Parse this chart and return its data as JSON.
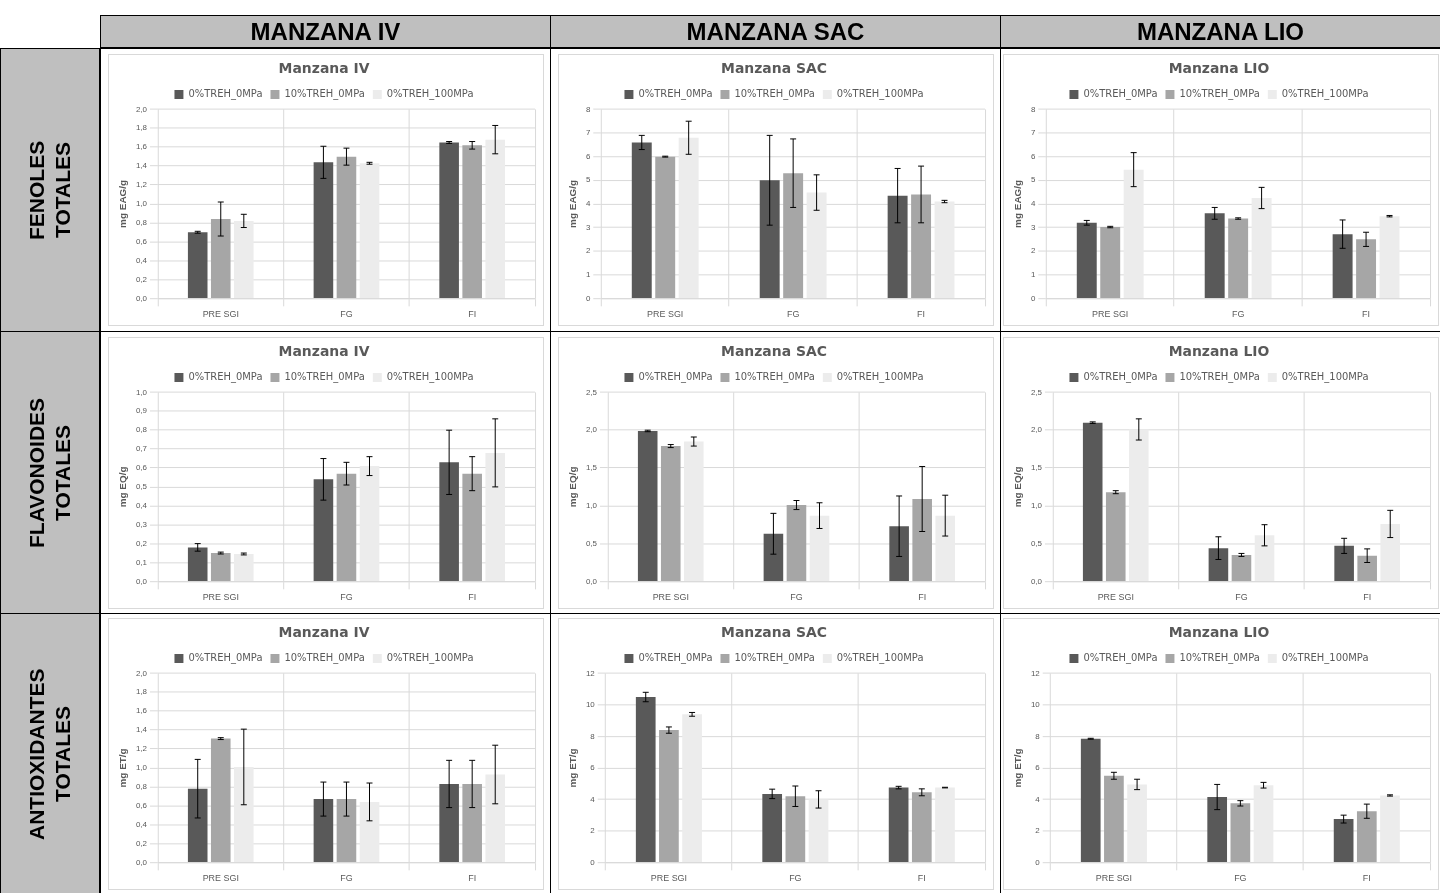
{
  "chart_data": [
    {
      "type": "bar",
      "title": "Manzana IV",
      "ylabel": "mg EAG/g",
      "categories": [
        "PRE SGI",
        "FG",
        "FI"
      ],
      "legend": "top",
      "grid": true,
      "ylim": [
        0,
        2
      ],
      "yticks": [
        {
          "value": 0,
          "label": "0,0"
        },
        {
          "value": 0.2,
          "label": "0,2"
        },
        {
          "value": 0.4,
          "label": "0,4"
        },
        {
          "value": 0.6,
          "label": "0,6"
        },
        {
          "value": 0.8,
          "label": "0,8"
        },
        {
          "value": 1,
          "label": "1,0"
        },
        {
          "value": 1.2,
          "label": "1,2"
        },
        {
          "value": 1.4,
          "label": "1,4"
        },
        {
          "value": 1.6,
          "label": "1,6"
        },
        {
          "value": 1.8,
          "label": "1,8"
        },
        {
          "value": 2,
          "label": "2,0"
        }
      ],
      "series": [
        {
          "name": "0%TREH_0MPa",
          "color": "#595959",
          "values": [
            0.7,
            1.44,
            1.65
          ],
          "errors": [
            0.01,
            0.17,
            0.01
          ]
        },
        {
          "name": "10%TREH_0MPa",
          "color": "#a6a6a6",
          "values": [
            0.84,
            1.5,
            1.62
          ],
          "errors": [
            0.18,
            0.09,
            0.04
          ]
        },
        {
          "name": "0%TREH_100MPa",
          "color": "#ececec",
          "values": [
            0.82,
            1.43,
            1.68
          ],
          "errors": [
            0.07,
            0.01,
            0.15
          ]
        }
      ]
    },
    {
      "type": "bar",
      "title": "Manzana SAC",
      "ylabel": "mg EAG/g",
      "categories": [
        "PRE SGI",
        "FG",
        "FI"
      ],
      "legend": "top",
      "grid": true,
      "ylim": [
        0,
        8
      ],
      "yticks": [
        0,
        1,
        2,
        3,
        4,
        5,
        6,
        7,
        8
      ],
      "series": [
        {
          "name": "0%TREH_0MPa",
          "color": "#595959",
          "values": [
            6.6,
            5.0,
            4.35
          ],
          "errors": [
            0.3,
            1.9,
            1.15
          ]
        },
        {
          "name": "10%TREH_0MPa",
          "color": "#a6a6a6",
          "values": [
            6.0,
            5.3,
            4.4
          ],
          "errors": [
            0.02,
            1.45,
            1.2
          ]
        },
        {
          "name": "0%TREH_100MPa",
          "color": "#ececec",
          "values": [
            6.8,
            4.48,
            4.1
          ],
          "errors": [
            0.7,
            0.75,
            0.05
          ]
        }
      ]
    },
    {
      "type": "bar",
      "title": "Manzana LIO",
      "ylabel": "mg EAG/g",
      "categories": [
        "PRE SGI",
        "FG",
        "FI"
      ],
      "legend": "top",
      "grid": true,
      "ylim": [
        0,
        8
      ],
      "yticks": [
        0,
        1,
        2,
        3,
        4,
        5,
        6,
        7,
        8
      ],
      "series": [
        {
          "name": "0%TREH_0MPa",
          "color": "#595959",
          "values": [
            3.2,
            3.6,
            2.72
          ],
          "errors": [
            0.1,
            0.25,
            0.6
          ]
        },
        {
          "name": "10%TREH_0MPa",
          "color": "#a6a6a6",
          "values": [
            3.02,
            3.38,
            2.5
          ],
          "errors": [
            0.03,
            0.03,
            0.3
          ]
        },
        {
          "name": "0%TREH_100MPa",
          "color": "#ececec",
          "values": [
            5.45,
            4.25,
            3.48
          ],
          "errors": [
            0.72,
            0.45,
            0.03
          ]
        }
      ]
    },
    {
      "type": "bar",
      "title": "Manzana IV",
      "ylabel": "mg EQ/g",
      "categories": [
        "PRE SGI",
        "FG",
        "FI"
      ],
      "legend": "top",
      "grid": true,
      "ylim": [
        0,
        1
      ],
      "yticks": [
        {
          "value": 0,
          "label": "0,0"
        },
        {
          "value": 0.1,
          "label": "0,1"
        },
        {
          "value": 0.2,
          "label": "0,2"
        },
        {
          "value": 0.3,
          "label": "0,3"
        },
        {
          "value": 0.4,
          "label": "0,4"
        },
        {
          "value": 0.5,
          "label": "0,5"
        },
        {
          "value": 0.6,
          "label": "0,6"
        },
        {
          "value": 0.7,
          "label": "0,7"
        },
        {
          "value": 0.8,
          "label": "0,8"
        },
        {
          "value": 0.9,
          "label": "0,9"
        },
        {
          "value": 1,
          "label": "1,0"
        }
      ],
      "series": [
        {
          "name": "0%TREH_0MPa",
          "color": "#595959",
          "values": [
            0.18,
            0.54,
            0.63
          ],
          "errors": [
            0.02,
            0.11,
            0.17
          ]
        },
        {
          "name": "10%TREH_0MPa",
          "color": "#a6a6a6",
          "values": [
            0.15,
            0.57,
            0.57
          ],
          "errors": [
            0.005,
            0.06,
            0.09
          ]
        },
        {
          "name": "0%TREH_100MPa",
          "color": "#ececec",
          "values": [
            0.145,
            0.61,
            0.68
          ],
          "errors": [
            0.005,
            0.05,
            0.18
          ]
        }
      ]
    },
    {
      "type": "bar",
      "title": "Manzana SAC",
      "ylabel": "mg EQ/g",
      "categories": [
        "PRE SGI",
        "FG",
        "FI"
      ],
      "legend": "top",
      "grid": true,
      "ylim": [
        0,
        2.5
      ],
      "yticks": [
        {
          "value": 0,
          "label": "0,0"
        },
        {
          "value": 0.5,
          "label": "0,5"
        },
        {
          "value": 1,
          "label": "1,0"
        },
        {
          "value": 1.5,
          "label": "1,5"
        },
        {
          "value": 2,
          "label": "2,0"
        },
        {
          "value": 2.5,
          "label": "2,5"
        }
      ],
      "series": [
        {
          "name": "0%TREH_0MPa",
          "color": "#595959",
          "values": [
            1.99,
            0.63,
            0.73
          ],
          "errors": [
            0.01,
            0.27,
            0.4
          ]
        },
        {
          "name": "10%TREH_0MPa",
          "color": "#a6a6a6",
          "values": [
            1.79,
            1.01,
            1.09
          ],
          "errors": [
            0.02,
            0.06,
            0.43
          ]
        },
        {
          "name": "0%TREH_100MPa",
          "color": "#ececec",
          "values": [
            1.85,
            0.87,
            0.87
          ],
          "errors": [
            0.06,
            0.17,
            0.27
          ]
        }
      ]
    },
    {
      "type": "bar",
      "title": "Manzana LIO",
      "ylabel": "mg EQ/g",
      "categories": [
        "PRE SGI",
        "FG",
        "FI"
      ],
      "legend": "top",
      "grid": true,
      "ylim": [
        0,
        2.5
      ],
      "yticks": [
        {
          "value": 0,
          "label": "0,0"
        },
        {
          "value": 0.5,
          "label": "0,5"
        },
        {
          "value": 1,
          "label": "1,0"
        },
        {
          "value": 1.5,
          "label": "1,5"
        },
        {
          "value": 2,
          "label": "2,0"
        },
        {
          "value": 2.5,
          "label": "2,5"
        }
      ],
      "series": [
        {
          "name": "0%TREH_0MPa",
          "color": "#595959",
          "values": [
            2.1,
            0.44,
            0.47
          ],
          "errors": [
            0.01,
            0.15,
            0.1
          ]
        },
        {
          "name": "10%TREH_0MPa",
          "color": "#a6a6a6",
          "values": [
            1.18,
            0.35,
            0.34
          ],
          "errors": [
            0.02,
            0.02,
            0.09
          ]
        },
        {
          "name": "0%TREH_100MPa",
          "color": "#ececec",
          "values": [
            2.01,
            0.61,
            0.76
          ],
          "errors": [
            0.14,
            0.14,
            0.18
          ]
        }
      ]
    },
    {
      "type": "bar",
      "title": "Manzana IV",
      "ylabel": "mg ET/g",
      "categories": [
        "PRE SGI",
        "FG",
        "FI"
      ],
      "legend": "top",
      "grid": true,
      "ylim": [
        0,
        2
      ],
      "yticks": [
        {
          "value": 0,
          "label": "0,0"
        },
        {
          "value": 0.2,
          "label": "0,2"
        },
        {
          "value": 0.4,
          "label": "0,4"
        },
        {
          "value": 0.6,
          "label": "0,6"
        },
        {
          "value": 0.8,
          "label": "0,8"
        },
        {
          "value": 1,
          "label": "1,0"
        },
        {
          "value": 1.2,
          "label": "1,2"
        },
        {
          "value": 1.4,
          "label": "1,4"
        },
        {
          "value": 1.6,
          "label": "1,6"
        },
        {
          "value": 1.8,
          "label": "1,8"
        },
        {
          "value": 2,
          "label": "2,0"
        }
      ],
      "series": [
        {
          "name": "0%TREH_0MPa",
          "color": "#595959",
          "values": [
            0.78,
            0.67,
            0.83
          ],
          "errors": [
            0.31,
            0.18,
            0.25
          ]
        },
        {
          "name": "10%TREH_0MPa",
          "color": "#a6a6a6",
          "values": [
            1.31,
            0.67,
            0.83
          ],
          "errors": [
            0.01,
            0.18,
            0.25
          ]
        },
        {
          "name": "0%TREH_100MPa",
          "color": "#ececec",
          "values": [
            1.01,
            0.64,
            0.93
          ],
          "errors": [
            0.4,
            0.2,
            0.31
          ]
        }
      ]
    },
    {
      "type": "bar",
      "title": "Manzana SAC",
      "ylabel": "mg ET/g",
      "categories": [
        "PRE SGI",
        "FG",
        "FI"
      ],
      "legend": "top",
      "grid": true,
      "ylim": [
        0,
        12
      ],
      "yticks": [
        0,
        2,
        4,
        6,
        8,
        10,
        12
      ],
      "series": [
        {
          "name": "0%TREH_0MPa",
          "color": "#595959",
          "values": [
            10.5,
            4.35,
            4.75
          ],
          "errors": [
            0.3,
            0.3,
            0.08
          ]
        },
        {
          "name": "10%TREH_0MPa",
          "color": "#a6a6a6",
          "values": [
            8.4,
            4.2,
            4.45
          ],
          "errors": [
            0.2,
            0.65,
            0.22
          ]
        },
        {
          "name": "0%TREH_100MPa",
          "color": "#ececec",
          "values": [
            9.4,
            4.0,
            4.75
          ],
          "errors": [
            0.12,
            0.55,
            0.02
          ]
        }
      ]
    },
    {
      "type": "bar",
      "title": "Manzana LIO",
      "ylabel": "mg ET/g",
      "categories": [
        "PRE SGI",
        "FG",
        "FI"
      ],
      "legend": "top",
      "grid": true,
      "ylim": [
        0,
        12
      ],
      "yticks": [
        0,
        2,
        4,
        6,
        8,
        10,
        12
      ],
      "series": [
        {
          "name": "0%TREH_0MPa",
          "color": "#595959",
          "values": [
            7.85,
            4.15,
            2.75
          ],
          "errors": [
            0.03,
            0.8,
            0.25
          ]
        },
        {
          "name": "10%TREH_0MPa",
          "color": "#a6a6a6",
          "values": [
            5.5,
            3.75,
            3.25
          ],
          "errors": [
            0.22,
            0.17,
            0.45
          ]
        },
        {
          "name": "0%TREH_100MPa",
          "color": "#ececec",
          "values": [
            4.95,
            4.9,
            4.25
          ],
          "errors": [
            0.33,
            0.18,
            0.04
          ]
        }
      ]
    },
    {
      "type": "other",
      "categories": [
        "MANZANA IV",
        "MANZANA SAC",
        "MANZANA LIO"
      ],
      "y_categories": [
        "FENOLES TOTALES",
        "FLAVONOIDES TOTALES",
        "ANTIOXIDANTES TOTALES"
      ]
    }
  ]
}
